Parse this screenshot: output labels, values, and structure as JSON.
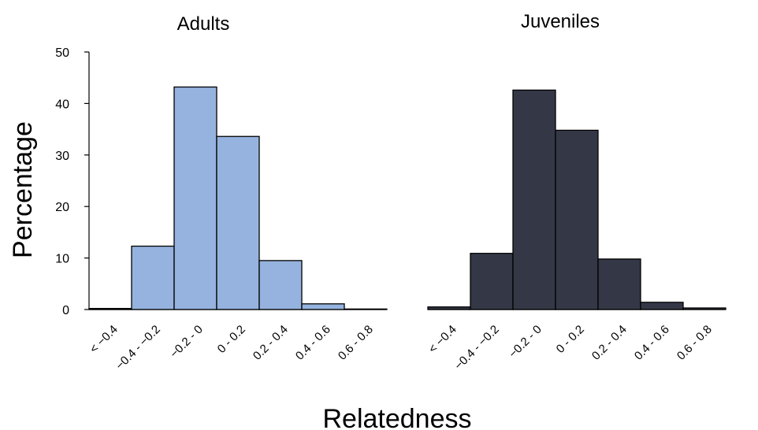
{
  "chart_data": {
    "type": "bar",
    "ylabel": "Percentage",
    "xlabel": "Relatedness",
    "ylim": [
      0,
      50
    ],
    "yticks": [
      0,
      10,
      20,
      30,
      40,
      50
    ],
    "categories": [
      "< −0.4",
      "−0.4 - −0.2",
      "−0.2 - 0",
      "0 - 0.2",
      "0.2 - 0.4",
      "0.4 - 0.6",
      "0.6 - 0.8"
    ],
    "grid": false,
    "panels": [
      {
        "title": "Adults",
        "color": "#95b3de",
        "values": [
          0.2,
          12.3,
          43.2,
          33.6,
          9.5,
          1.1,
          0.1
        ]
      },
      {
        "title": "Juveniles",
        "color": "#343846",
        "values": [
          0.5,
          10.9,
          42.6,
          34.8,
          9.8,
          1.4,
          0.3
        ]
      }
    ]
  }
}
